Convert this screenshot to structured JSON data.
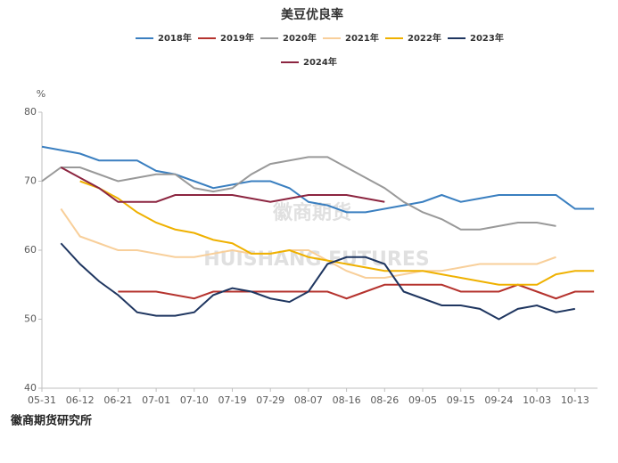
{
  "chart_data": {
    "type": "line",
    "title": "美豆优良率",
    "y_label": "%",
    "footer": "徽商期货研究所",
    "watermarks": [
      "徽商期货",
      "HUISHANG FUTURES"
    ],
    "categories": [
      "05-31",
      null,
      "06-12",
      null,
      "06-21",
      null,
      "07-01",
      null,
      "07-10",
      null,
      "07-19",
      null,
      "07-29",
      null,
      "08-07",
      null,
      "08-16",
      null,
      "08-26",
      null,
      "09-05",
      null,
      "09-15",
      null,
      "09-24",
      null,
      "10-03",
      null,
      "10-13",
      null
    ],
    "ylim": [
      40,
      80
    ],
    "yticks": [
      40,
      50,
      60,
      70,
      80
    ],
    "grid": false,
    "series": [
      {
        "name": "2018年",
        "color": "#3a7fc0",
        "values": [
          75,
          74.5,
          74,
          73,
          73,
          73,
          71.5,
          71,
          70,
          69,
          69.5,
          70,
          70,
          69,
          67,
          66.5,
          65.5,
          65.5,
          66,
          66.5,
          67,
          68,
          67,
          67.5,
          68,
          68,
          68,
          68,
          66,
          66
        ]
      },
      {
        "name": "2019年",
        "color": "#b5332e",
        "values": [
          null,
          null,
          null,
          null,
          54,
          54,
          54,
          53.5,
          53,
          54,
          54,
          54,
          54,
          54,
          54,
          54,
          53,
          54,
          55,
          55,
          55,
          55,
          54,
          54,
          54,
          55,
          54,
          53,
          54,
          54
        ]
      },
      {
        "name": "2020年",
        "color": "#999999",
        "values": [
          70,
          72,
          72,
          71,
          70,
          70.5,
          71,
          71,
          69,
          68.5,
          69,
          71,
          72.5,
          73,
          73.5,
          73.5,
          72,
          70.5,
          69,
          67,
          65.5,
          64.5,
          63,
          63,
          63.5,
          64,
          64,
          63.5,
          null,
          null
        ]
      },
      {
        "name": "2021年",
        "color": "#f8cf9a",
        "values": [
          null,
          66,
          62,
          61,
          60,
          60,
          59.5,
          59,
          59,
          59.5,
          60,
          59.5,
          59.5,
          60,
          60,
          58.5,
          57,
          56,
          56,
          56.5,
          57,
          57,
          57.5,
          58,
          58,
          58,
          58,
          59,
          null,
          null
        ]
      },
      {
        "name": "2022年",
        "color": "#efb100",
        "values": [
          null,
          null,
          70,
          69,
          67.5,
          65.5,
          64,
          63,
          62.5,
          61.5,
          61,
          59.5,
          59.5,
          60,
          59,
          58.5,
          58,
          57.5,
          57,
          57,
          57,
          56.5,
          56,
          55.5,
          55,
          55,
          55,
          56.5,
          57,
          57
        ]
      },
      {
        "name": "2023年",
        "color": "#1f3660",
        "values": [
          null,
          61,
          58,
          55.5,
          53.5,
          51,
          50.5,
          50.5,
          51,
          53.5,
          54.5,
          54,
          53,
          52.5,
          54,
          58,
          59,
          59,
          58,
          54,
          53,
          52,
          52,
          51.5,
          50,
          51.5,
          52,
          51,
          51.5,
          null
        ]
      },
      {
        "name": "2024年",
        "color": "#8c2540",
        "values": [
          null,
          72,
          70.5,
          69,
          67,
          67,
          67,
          68,
          68,
          68,
          68,
          67.5,
          67,
          67.5,
          68,
          68,
          68,
          67.5,
          67,
          null,
          null,
          null,
          null,
          null,
          null,
          null,
          null,
          null,
          null,
          null
        ]
      }
    ]
  }
}
